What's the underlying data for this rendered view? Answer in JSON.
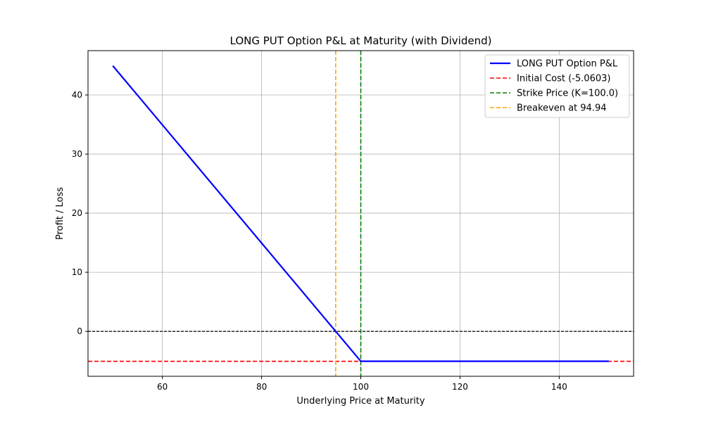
{
  "chart_data": {
    "type": "line",
    "title": "LONG PUT Option P&L at Maturity (with Dividend)",
    "xlabel": "Underlying Price at Maturity",
    "ylabel": "Profit / Loss",
    "xlim": [
      45,
      155
    ],
    "ylim": [
      -7.6,
      47.5
    ],
    "xticks": [
      60,
      80,
      100,
      120,
      140
    ],
    "yticks": [
      0,
      10,
      20,
      30,
      40
    ],
    "grid": true,
    "legend_position": "top-right",
    "series": [
      {
        "name": "LONG PUT Option P&L",
        "color": "#0000ff",
        "style": "solid",
        "x": [
          50,
          100,
          150
        ],
        "y": [
          44.94,
          -5.0603,
          -5.0603
        ]
      }
    ],
    "hlines": [
      {
        "name": "Initial Cost (-5.0603)",
        "y": -5.0603,
        "color": "#ff0000",
        "style": "dashed",
        "in_legend": true
      },
      {
        "name": "",
        "y": 0,
        "color": "#000000",
        "style": "dashed",
        "in_legend": false
      }
    ],
    "vlines": [
      {
        "name": "Strike Price (K=100.0)",
        "x": 100.0,
        "color": "#008000",
        "style": "dashed",
        "in_legend": true
      },
      {
        "name": "Breakeven at 94.94",
        "x": 94.94,
        "color": "#ffa500",
        "style": "dashed",
        "in_legend": true
      }
    ]
  }
}
